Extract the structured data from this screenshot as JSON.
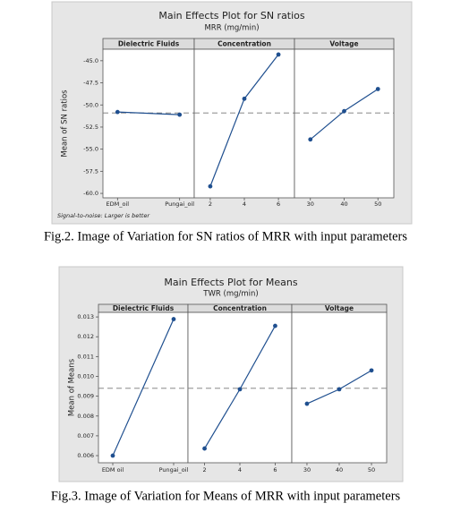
{
  "chart_data": [
    {
      "type": "line",
      "title": "Main Effects Plot for SN ratios",
      "subtitle": "MRR (mg/min)",
      "ylabel": "Mean of SN ratios",
      "note": "Signal-to-noise: Larger is better",
      "caption": "Fig.2. Image of Variation for SN ratios of MRR with input parameters",
      "color": "#1f4f8f",
      "reference": -50.9,
      "ylim": [
        -60.5,
        -43.7
      ],
      "yticks": [
        {
          "value": -45,
          "label": "-45.0"
        },
        {
          "value": -47.5,
          "label": "-47.5"
        },
        {
          "value": -50,
          "label": "-50.0"
        },
        {
          "value": -52.5,
          "label": "-52.5"
        },
        {
          "value": -55,
          "label": "-55.0"
        },
        {
          "value": -57.5,
          "label": "-57.5"
        },
        {
          "value": -60,
          "label": "-60.0"
        }
      ],
      "panels": [
        {
          "name": "Dielectric Fluids",
          "categories": [
            "EDM_oil",
            "Pungai_oil"
          ],
          "values": [
            -50.8,
            -51.1
          ]
        },
        {
          "name": "Concentration",
          "categories": [
            "2",
            "4",
            "6"
          ],
          "values": [
            -59.2,
            -49.3,
            -44.3
          ]
        },
        {
          "name": "Voltage",
          "categories": [
            "30",
            "40",
            "50"
          ],
          "values": [
            -53.9,
            -50.7,
            -48.2
          ]
        }
      ]
    },
    {
      "type": "line",
      "title": "Main Effects Plot for Means",
      "subtitle": "TWR (mg/min)",
      "ylabel": "Mean of Means",
      "caption": "Fig.3. Image of Variation for Means of MRR with input parameters",
      "color": "#1f4f8f",
      "reference": 0.0094,
      "ylim": [
        0.00564,
        0.01323
      ],
      "yticks": [
        0.006,
        0.007,
        0.008,
        0.009,
        {
          "value": 0.01,
          "label": "0.010"
        },
        0.011,
        0.012,
        0.013
      ],
      "panels": [
        {
          "name": "Dielectric Fluids",
          "categories": [
            "EDM oil",
            "Pungai_oil"
          ],
          "values": [
            0.006,
            0.01289
          ]
        },
        {
          "name": "Concentration",
          "categories": [
            "2",
            "4",
            "6"
          ],
          "values": [
            0.00636,
            0.00935,
            0.01255
          ]
        },
        {
          "name": "Voltage",
          "categories": [
            "30",
            "40",
            "50"
          ],
          "values": [
            0.00862,
            0.00935,
            0.0103
          ]
        }
      ]
    }
  ]
}
